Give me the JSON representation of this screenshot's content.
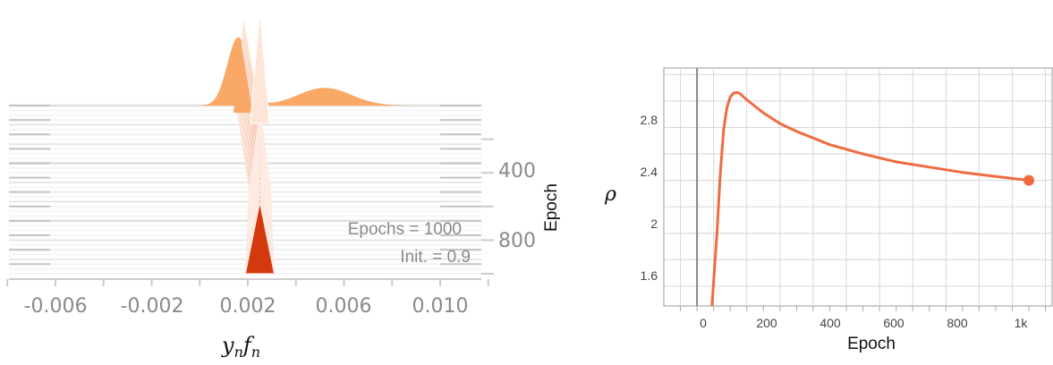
{
  "chart_data": [
    {
      "type": "area",
      "xlabel": "y_n f_n",
      "ylabel": "Epoch",
      "xlim": [
        -0.008,
        0.012
      ],
      "x_ticks": [
        "-0.006",
        "-0.002",
        "0.002",
        "0.006",
        "0.010"
      ],
      "x_tick_values": [
        -0.006,
        -0.002,
        0.002,
        0.006,
        0.01
      ],
      "y_ticks": [
        "400",
        "800"
      ],
      "y_tick_values": [
        400,
        800
      ],
      "epochs_shown": [
        0,
        1000
      ],
      "annotations": [
        "Epochs = 1000",
        "Init. = 0.9"
      ],
      "final_distribution": {
        "peak_x": 0.0025,
        "width": 0.0012
      },
      "initial_distribution": {
        "modes": [
          {
            "x": 0.0016,
            "height": 0.85
          },
          {
            "x": 0.0052,
            "height": 0.22
          }
        ]
      },
      "colors": {
        "early": "#f9a866",
        "late": "#d4380d",
        "band": "#f2f2f2"
      }
    },
    {
      "type": "line",
      "xlabel": "Epoch",
      "ylabel": "ρ",
      "xlim": [
        -100,
        1070
      ],
      "ylim": [
        1.45,
        3.25
      ],
      "x_ticks": [
        "0",
        "200",
        "400",
        "600",
        "800",
        "1k"
      ],
      "x_tick_values": [
        0,
        200,
        400,
        600,
        800,
        1000
      ],
      "y_ticks": [
        "1.6",
        "2",
        "2.4",
        "2.8"
      ],
      "y_tick_values": [
        1.6,
        2.0,
        2.4,
        2.8
      ],
      "grid": true,
      "series": [
        {
          "x": [
            45,
            60,
            70,
            80,
            90,
            100,
            110,
            120,
            130,
            150,
            200,
            250,
            300,
            400,
            500,
            600,
            700,
            800,
            900,
            1000
          ],
          "y": [
            1.45,
            2.0,
            2.45,
            2.78,
            2.95,
            3.03,
            3.06,
            3.065,
            3.055,
            3.01,
            2.91,
            2.83,
            2.77,
            2.67,
            2.6,
            2.54,
            2.5,
            2.46,
            2.43,
            2.4
          ],
          "color": "#f06b3f"
        }
      ],
      "highlight_point": {
        "x": 1000,
        "y": 2.4
      }
    }
  ]
}
